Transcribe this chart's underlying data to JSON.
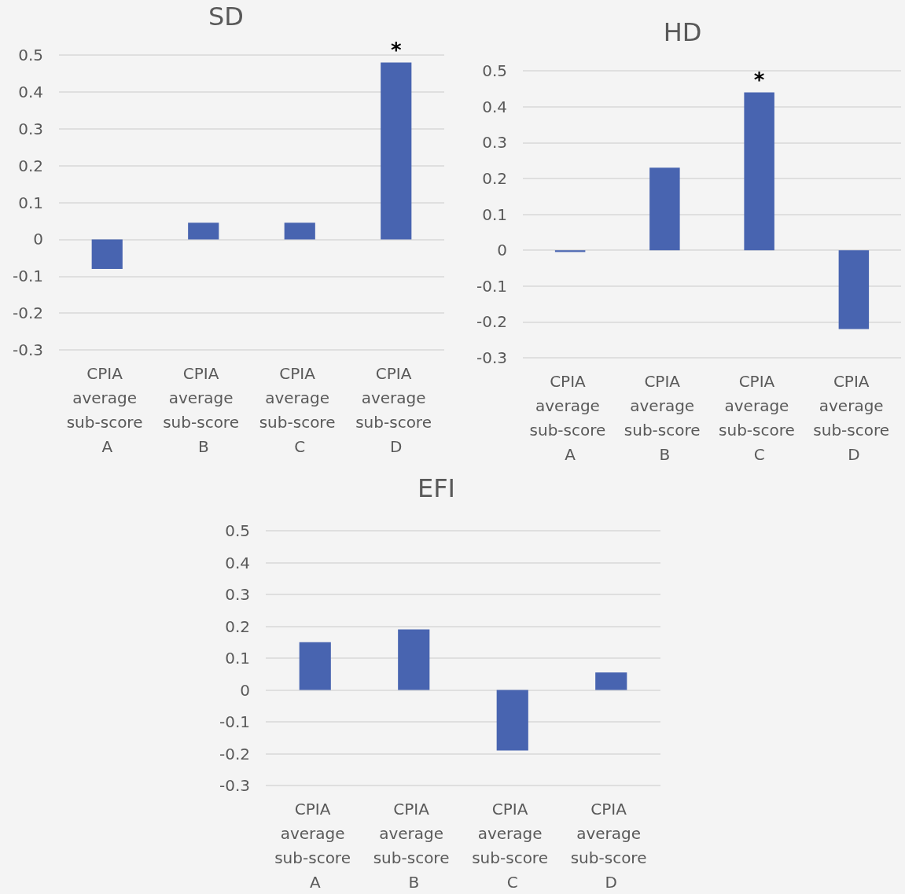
{
  "chart_data": [
    {
      "type": "bar",
      "title": "SD",
      "categories": [
        "CPIA average sub-score A",
        "CPIA average sub-score B",
        "CPIA average sub-score C",
        "CPIA average sub-score D"
      ],
      "values": [
        -0.08,
        0.045,
        0.045,
        0.48
      ],
      "color": "#4864b0",
      "ylim": [
        -0.3,
        0.5
      ],
      "yticks": [
        -0.3,
        -0.2,
        -0.1,
        0,
        0.1,
        0.2,
        0.3,
        0.4,
        0.5
      ],
      "grid": "y",
      "annotations": [
        {
          "text": "*",
          "x": "CPIA average sub-score D",
          "y": 0.48
        }
      ]
    },
    {
      "type": "bar",
      "title": "HD",
      "categories": [
        "CPIA average sub-score A",
        "CPIA average sub-score B",
        "CPIA average sub-score C",
        "CPIA average sub-score D"
      ],
      "values": [
        -0.005,
        0.23,
        0.44,
        -0.22
      ],
      "color": "#4864b0",
      "ylim": [
        -0.3,
        0.5
      ],
      "yticks": [
        -0.3,
        -0.2,
        -0.1,
        0,
        0.1,
        0.2,
        0.3,
        0.4,
        0.5
      ],
      "grid": "y",
      "annotations": [
        {
          "text": "*",
          "x": "CPIA average sub-score C",
          "y": 0.44
        }
      ]
    },
    {
      "type": "bar",
      "title": "EFI",
      "categories": [
        "CPIA average sub-score A",
        "CPIA average sub-score B",
        "CPIA average sub-score C",
        "CPIA average sub-score D"
      ],
      "values": [
        0.15,
        0.19,
        -0.19,
        0.055
      ],
      "color": "#4864b0",
      "ylim": [
        -0.3,
        0.5
      ],
      "yticks": [
        -0.3,
        -0.2,
        -0.1,
        0,
        0.1,
        0.2,
        0.3,
        0.4,
        0.5
      ],
      "grid": "y"
    }
  ]
}
